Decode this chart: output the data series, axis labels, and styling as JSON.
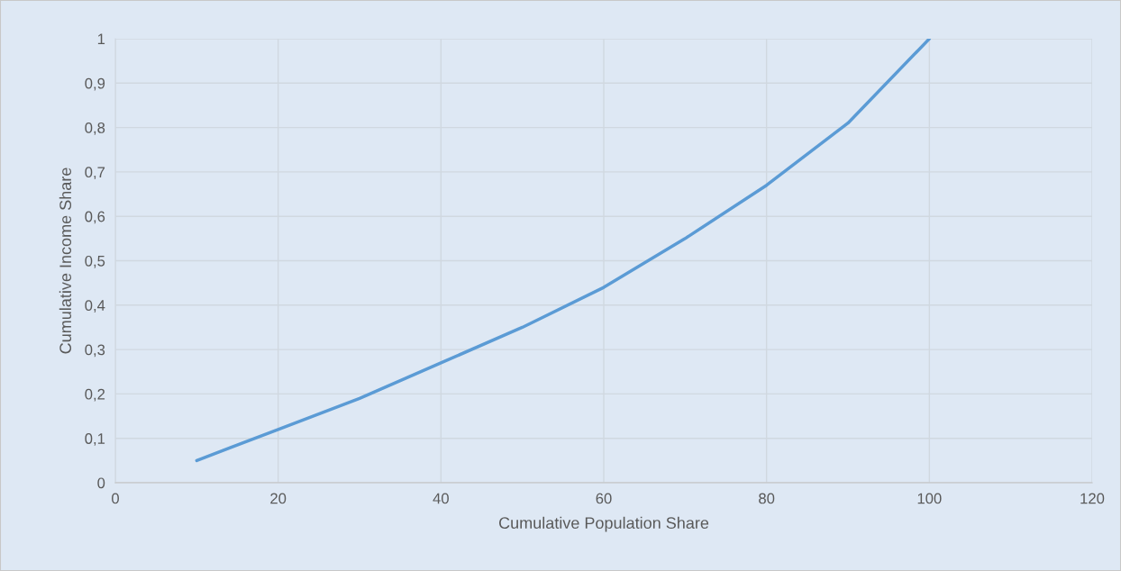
{
  "chart_data": {
    "type": "line",
    "xlabel": "Cumulative Population Share",
    "ylabel": "Cumulative Income Share",
    "x": [
      10,
      20,
      30,
      40,
      50,
      60,
      70,
      80,
      90,
      100
    ],
    "series": [
      {
        "color": "#5b9bd5",
        "values": [
          0.05,
          0.12,
          0.19,
          0.27,
          0.35,
          0.44,
          0.55,
          0.67,
          0.81,
          1.0
        ]
      }
    ],
    "xlim": [
      0,
      120
    ],
    "xticks": [
      0,
      20,
      40,
      60,
      80,
      100,
      120
    ],
    "ylim": [
      0,
      1
    ],
    "yticks": [
      0,
      {
        "value": 0.1,
        "label": "0,1"
      },
      {
        "value": 0.2,
        "label": "0,2"
      },
      {
        "value": 0.3,
        "label": "0,3"
      },
      {
        "value": 0.4,
        "label": "0,4"
      },
      {
        "value": 0.5,
        "label": "0,5"
      },
      {
        "value": 0.6,
        "label": "0,6"
      },
      {
        "value": 0.7,
        "label": "0,7"
      },
      {
        "value": 0.8,
        "label": "0,8"
      },
      {
        "value": 0.9,
        "label": "0,9"
      },
      1
    ],
    "grid": true,
    "marker": "none",
    "line_style": "solid"
  }
}
